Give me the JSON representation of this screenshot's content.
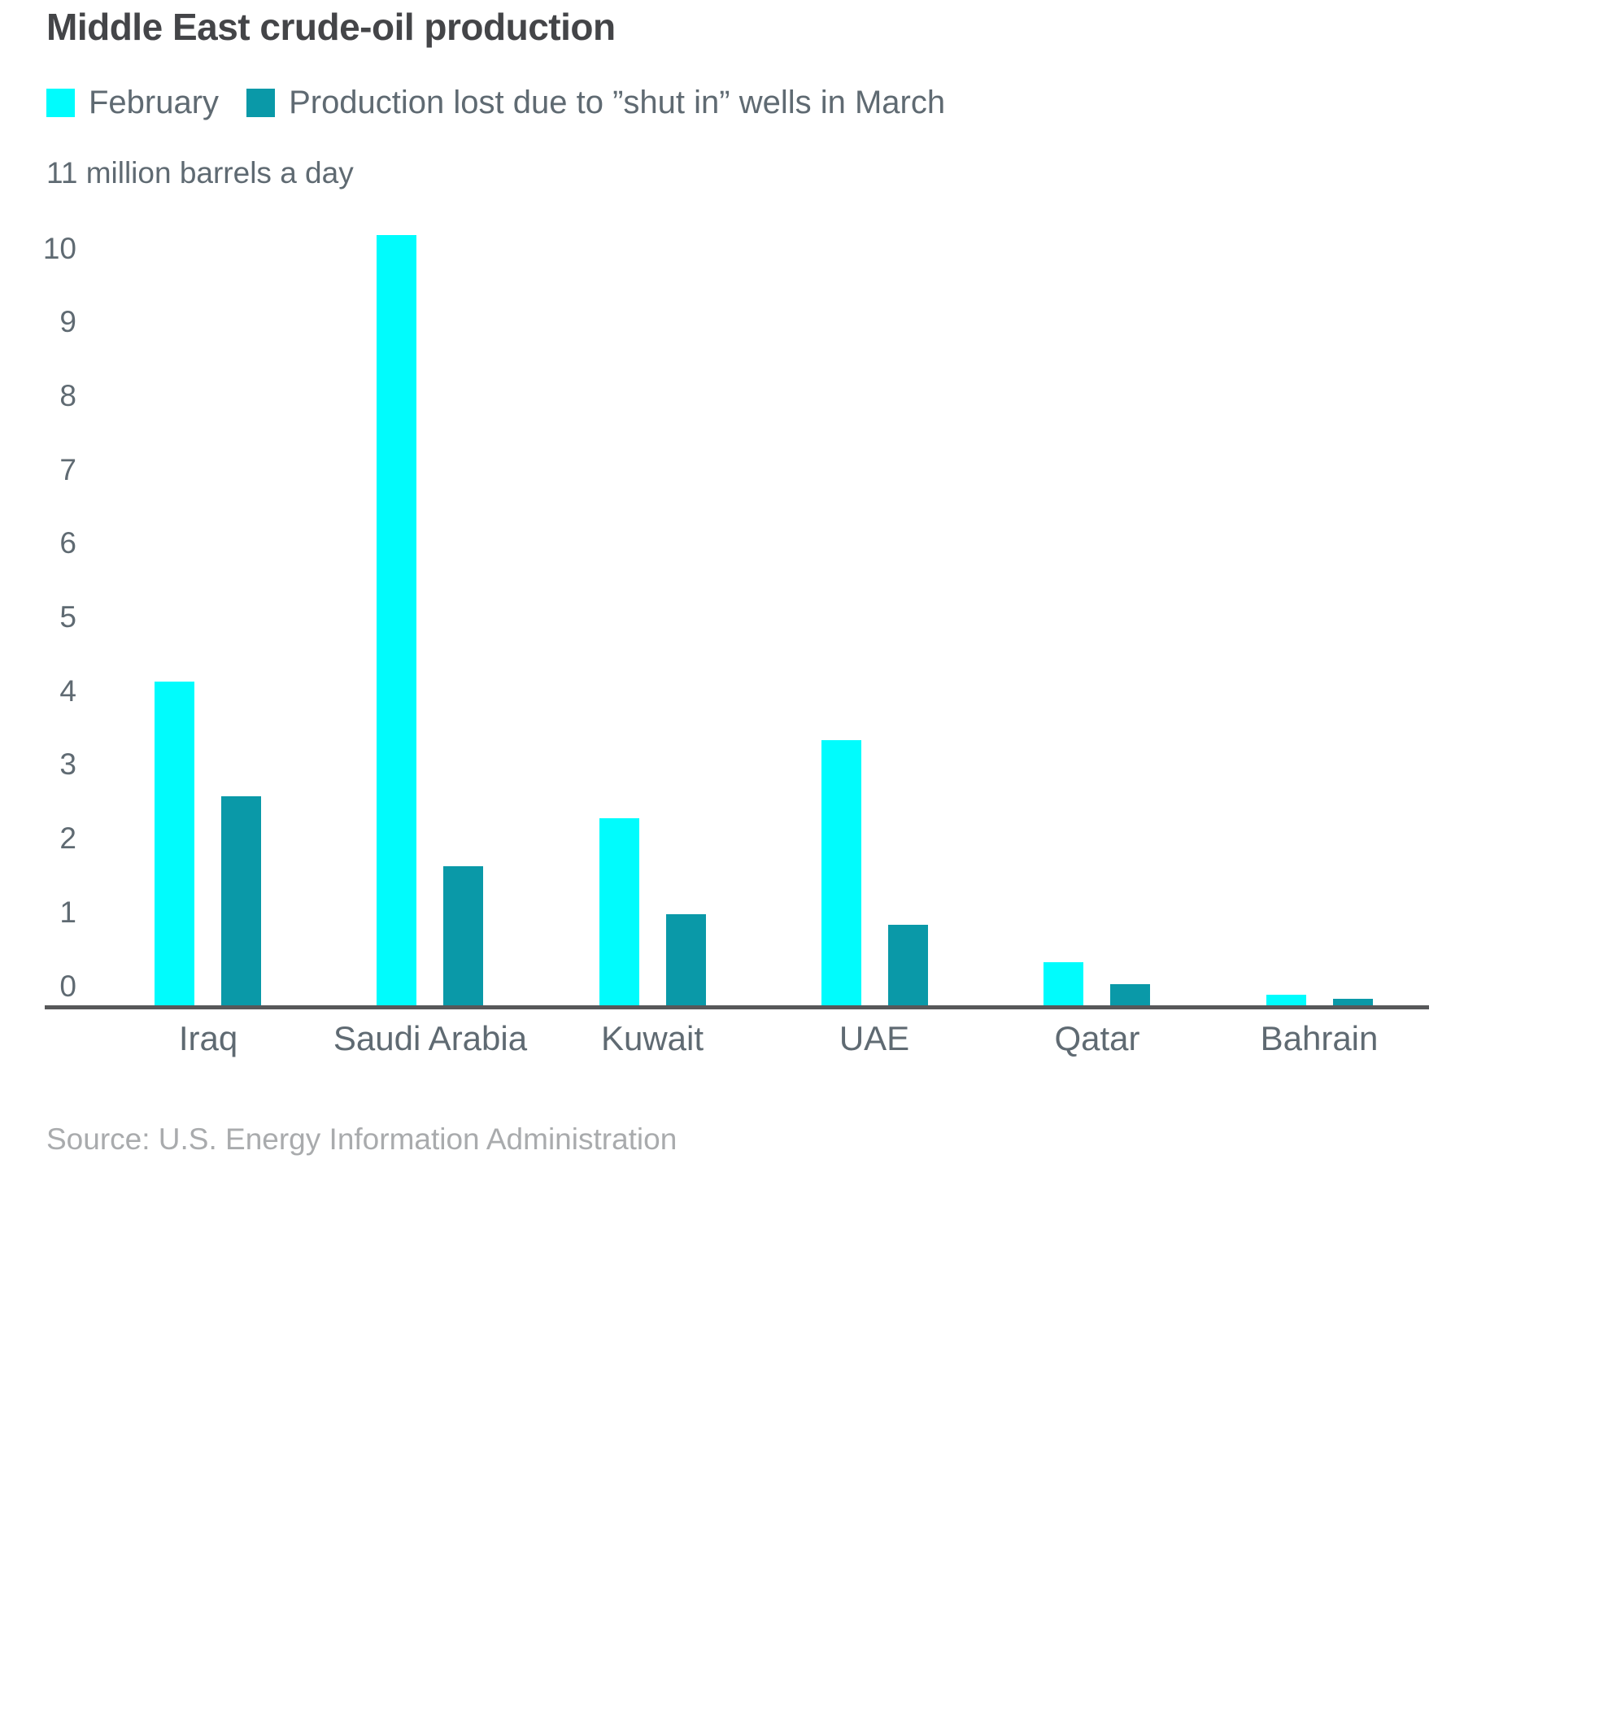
{
  "title": "Middle East crude-oil production",
  "legend": {
    "february_label": "February",
    "march_label": "Production lost due to ”shut in” wells in March"
  },
  "axis_note": "11 million barrels a day",
  "source": "Source: U.S. Energy Information Administration",
  "colors": {
    "february": "#00FCFD",
    "march": "#0A99A8",
    "axis_line": "#57585a"
  },
  "chart_data": {
    "type": "bar",
    "title": "Middle East crude-oil production",
    "categories": [
      "Iraq",
      "Saudi Arabia",
      "Kuwait",
      "UAE",
      "Qatar",
      "Bahrain"
    ],
    "series": [
      {
        "name": "February",
        "color": "#00FCFD",
        "values": [
          4.4,
          10.45,
          2.55,
          3.6,
          0.6,
          0.15
        ]
      },
      {
        "name": "Production lost due to ”shut in” wells in March",
        "color": "#0A99A8",
        "values": [
          2.85,
          1.9,
          1.25,
          1.1,
          0.3,
          0.1
        ]
      }
    ],
    "xlabel": "",
    "ylabel": "11 million barrels a day",
    "ylim": [
      0,
      11
    ],
    "y_ticks": [
      0,
      1,
      2,
      3,
      4,
      5,
      6,
      7,
      8,
      9,
      10
    ],
    "grid": false,
    "legend_position": "top"
  }
}
